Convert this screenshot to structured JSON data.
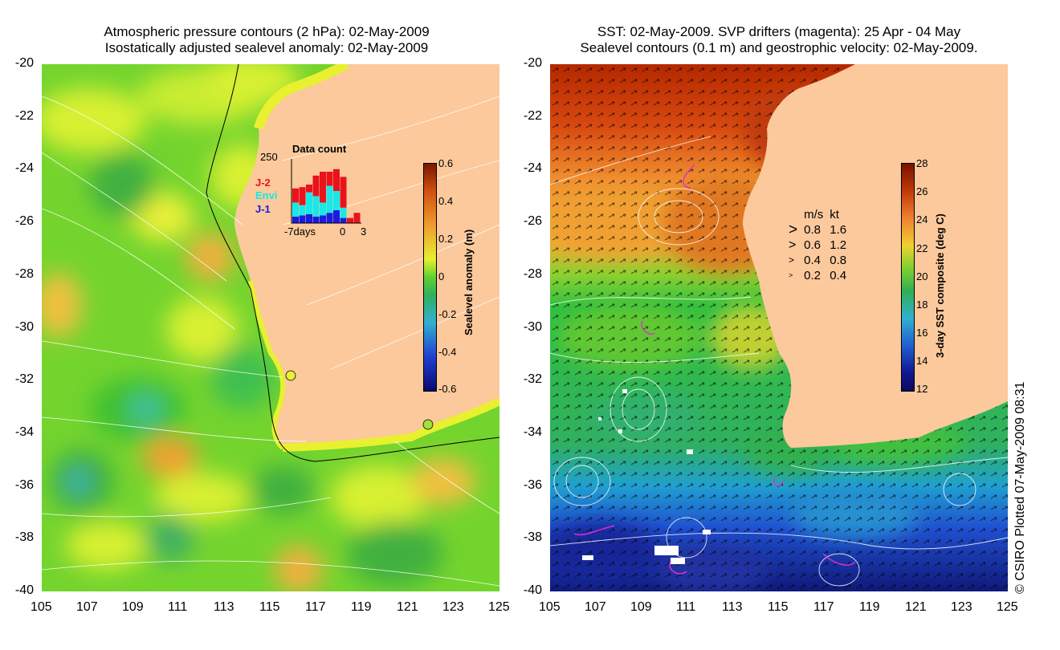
{
  "left_panel": {
    "title_line1": "Atmospheric pressure contours (2 hPa): 02-May-2009",
    "title_line2": "Isostatically adjusted sealevel anomaly: 02-May-2009",
    "colorbar": {
      "title": "Sealevel anomaly (m)",
      "ticks": [
        "0.6",
        "0.4",
        "0.2",
        "0",
        "-0.2",
        "-0.4",
        "-0.6"
      ],
      "range": [
        -0.6,
        0.6
      ]
    },
    "inset": {
      "title": "Data count",
      "ymax_label": "250",
      "x_labels": [
        "-7days",
        "0",
        "3"
      ],
      "series": [
        {
          "name": "J-2",
          "color": "#e8141c"
        },
        {
          "name": "Envi",
          "color": "#18e8e8"
        },
        {
          "name": "J-1",
          "color": "#1a1ae0"
        }
      ],
      "bars": [
        {
          "j1": 25,
          "envi": 55,
          "j2": 55
        },
        {
          "j1": 30,
          "envi": 40,
          "j2": 70
        },
        {
          "j1": 35,
          "envi": 85,
          "j2": 30
        },
        {
          "j1": 25,
          "envi": 80,
          "j2": 80
        },
        {
          "j1": 30,
          "envi": 50,
          "j2": 120
        },
        {
          "j1": 40,
          "envi": 105,
          "j2": 55
        },
        {
          "j1": 50,
          "envi": 75,
          "j2": 85
        },
        {
          "j1": 20,
          "envi": 40,
          "j2": 120
        },
        {
          "j1": 0,
          "envi": 0,
          "j2": 20
        },
        {
          "j1": 0,
          "envi": 0,
          "j2": 40
        }
      ]
    }
  },
  "right_panel": {
    "title_line1": "SST: 02-May-2009. SVP drifters (magenta): 25 Apr - 04 May",
    "title_line2": "Sealevel contours (0.1 m) and geostrophic velocity: 02-May-2009.",
    "colorbar": {
      "title": "3-day SST composite (deg C)",
      "ticks": [
        "28",
        "26",
        "24",
        "22",
        "20",
        "18",
        "16",
        "14",
        "12"
      ],
      "range": [
        12,
        28
      ]
    },
    "velocity_legend": {
      "headers": [
        "m/s",
        "kt"
      ],
      "rows": [
        [
          "0.8",
          "1.6"
        ],
        [
          "0.6",
          "1.2"
        ],
        [
          "0.4",
          "0.8"
        ],
        [
          "0.2",
          "0.4"
        ]
      ]
    }
  },
  "axes": {
    "lat_ticks": [
      "-20",
      "-22",
      "-24",
      "-26",
      "-28",
      "-30",
      "-32",
      "-34",
      "-36",
      "-38",
      "-40"
    ],
    "lon_ticks": [
      "105",
      "107",
      "109",
      "111",
      "113",
      "115",
      "117",
      "119",
      "121",
      "123",
      "125"
    ]
  },
  "copyright": "© CSIRO Plotted 07-May-2009 08:31",
  "colors": {
    "land": "#fbc99c",
    "sla_green": "#5cd030",
    "sla_yellow": "#d8f030",
    "sst_red": "#b42800",
    "sst_orange": "#f0a030",
    "sst_green": "#30c040",
    "sst_blue": "#2060d0",
    "sst_deep": "#101890"
  }
}
